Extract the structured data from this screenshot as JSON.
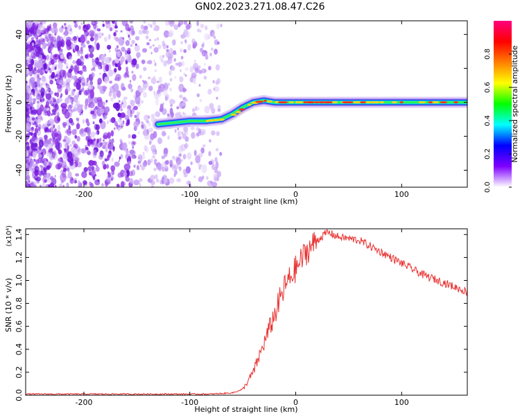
{
  "figure": {
    "title": "GN02.2023.271.08.47.C26"
  },
  "chart_data": [
    {
      "type": "heatmap",
      "xlabel": "Height of straight line (km)",
      "ylabel": "Frequency (Hz)",
      "xlim": [
        -255,
        162
      ],
      "ylim": [
        -50,
        48
      ],
      "xticks": [
        -200,
        -100,
        0,
        100
      ],
      "yticks": [
        -40,
        -20,
        0,
        20,
        40
      ],
      "grid": false,
      "colorbar": {
        "label": "Normalized spectral amplitude",
        "range": [
          0,
          1
        ],
        "ticks": [
          "0.0",
          "0.2",
          "0.4",
          "0.6",
          "0.8"
        ],
        "colors": [
          "#ffffff",
          "#7f00ff",
          "#0000ff",
          "#00ffff",
          "#00ff00",
          "#ffff00",
          "#ff7f00",
          "#ff0000",
          "#ff0080"
        ]
      },
      "ridge": {
        "height_km": [
          -130,
          -115,
          -100,
          -85,
          -70,
          -60,
          -50,
          -40,
          -30,
          -20,
          -10,
          0,
          20,
          50,
          80,
          110,
          140,
          162
        ],
        "frequency_hz": [
          -13,
          -12,
          -11,
          -11,
          -10,
          -7,
          -3,
          0,
          1,
          0,
          0,
          0,
          0,
          0,
          0,
          0,
          0,
          0
        ]
      }
    },
    {
      "type": "line",
      "xlabel": "Height of straight line (km)",
      "ylabel": "SNR (10 * v/v)",
      "yscale_label": "(x10⁴)",
      "xlim": [
        -255,
        162
      ],
      "ylim": [
        0,
        1.45
      ],
      "xticks": [
        -200,
        -100,
        0,
        100
      ],
      "yticks": [
        "0.0",
        "0.2",
        "0.4",
        "0.6",
        "0.8",
        "1.0",
        "1.2",
        "1.4"
      ],
      "grid": false,
      "series": [
        {
          "color": "#e8302f",
          "x": [
            -255,
            -200,
            -150,
            -100,
            -80,
            -60,
            -50,
            -40,
            -30,
            -20,
            -10,
            0,
            10,
            20,
            30,
            40,
            60,
            80,
            100,
            120,
            140,
            162
          ],
          "y": [
            0.01,
            0.01,
            0.01,
            0.01,
            0.01,
            0.02,
            0.05,
            0.2,
            0.45,
            0.7,
            0.95,
            1.1,
            1.25,
            1.35,
            1.42,
            1.38,
            1.35,
            1.25,
            1.15,
            1.05,
            0.98,
            0.9
          ]
        }
      ]
    }
  ]
}
